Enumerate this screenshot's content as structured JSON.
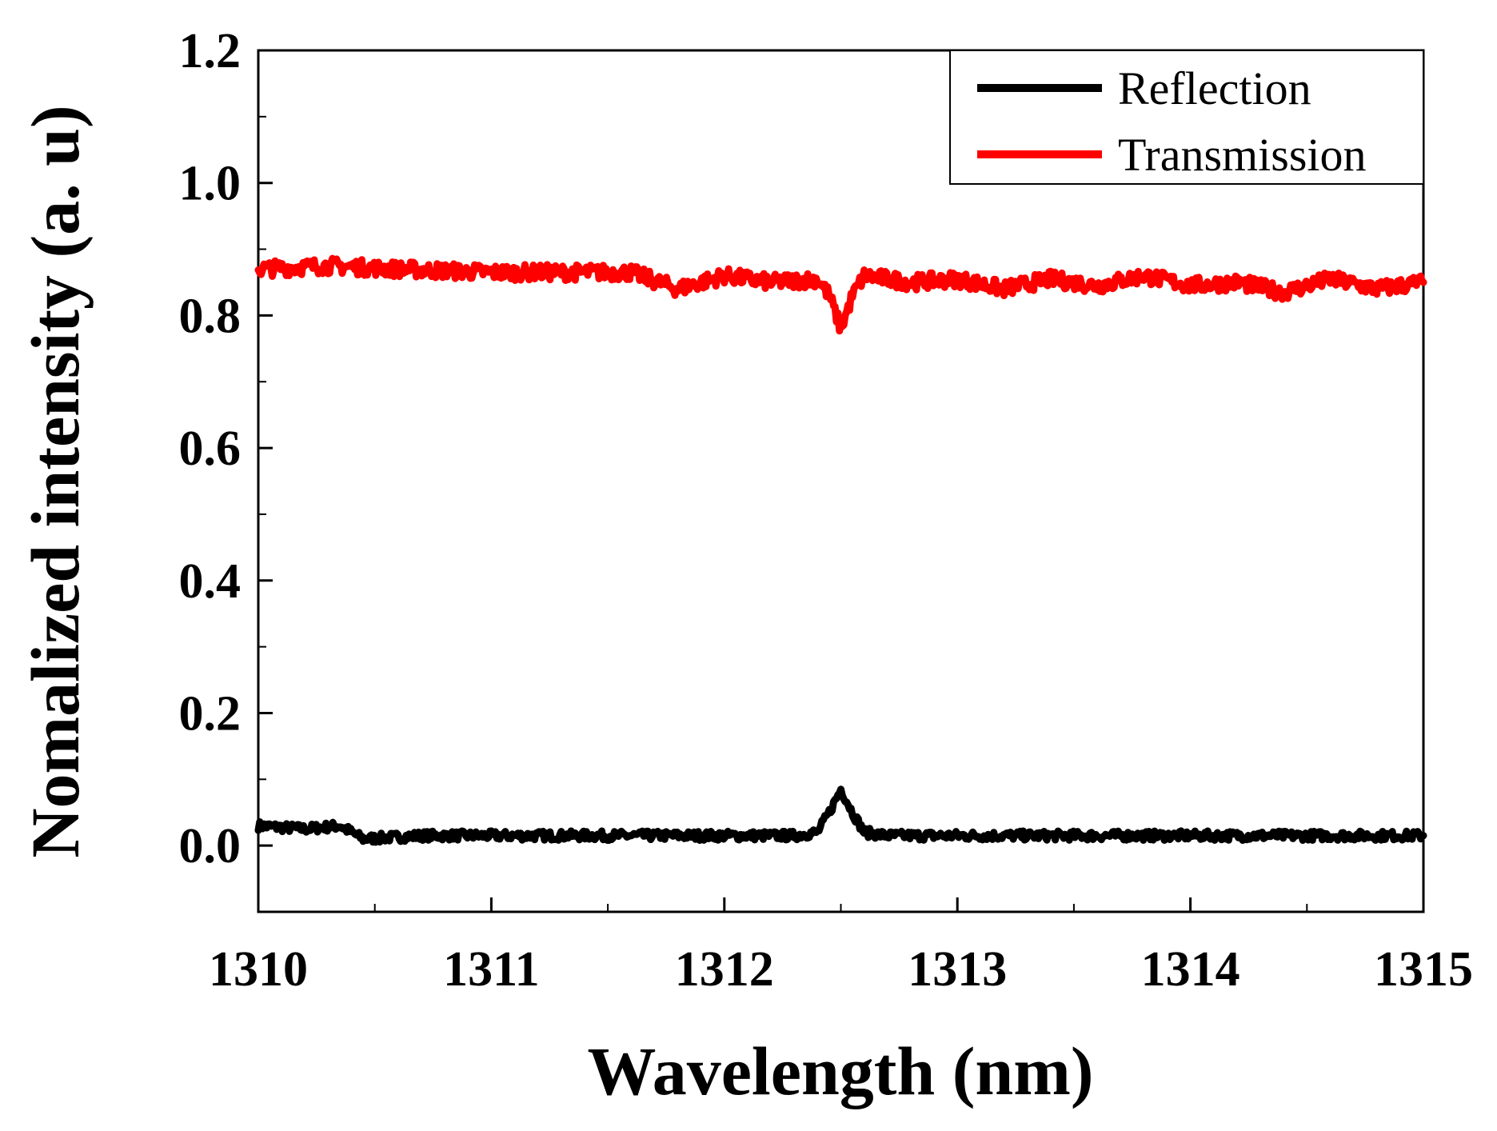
{
  "chart_data": {
    "type": "line",
    "title": "",
    "xlabel": "Wavelength (nm)",
    "ylabel": "Nomalized intensity (a. u)",
    "xlim": [
      1310,
      1315
    ],
    "ylim": [
      -0.1,
      1.2
    ],
    "xticks": [
      1310,
      1311,
      1312,
      1313,
      1314,
      1315
    ],
    "xtick_labels": [
      "1310",
      "1311",
      "1312",
      "1313",
      "1314",
      "1315"
    ],
    "yticks": [
      0.0,
      0.2,
      0.4,
      0.6,
      0.8,
      1.0,
      1.2
    ],
    "ytick_labels": [
      "0.0",
      "0.2",
      "0.4",
      "0.6",
      "0.8",
      "1.0",
      "1.2"
    ],
    "grid": false,
    "legend_position": "top-right",
    "series": [
      {
        "name": "Reflection",
        "color": "#000000",
        "x": [
          1310.0,
          1310.2,
          1310.35,
          1310.45,
          1310.7,
          1311.0,
          1311.3,
          1311.6,
          1311.9,
          1312.1,
          1312.3,
          1312.4,
          1312.45,
          1312.5,
          1312.55,
          1312.6,
          1312.7,
          1313.0,
          1313.3,
          1313.6,
          1313.9,
          1314.2,
          1314.5,
          1314.8,
          1315.0
        ],
        "values": [
          0.03,
          0.025,
          0.03,
          0.01,
          0.015,
          0.015,
          0.015,
          0.015,
          0.015,
          0.015,
          0.015,
          0.02,
          0.05,
          0.085,
          0.05,
          0.02,
          0.015,
          0.015,
          0.015,
          0.015,
          0.015,
          0.015,
          0.015,
          0.015,
          0.015
        ]
      },
      {
        "name": "Transmission",
        "color": "#ff0000",
        "x": [
          1310.0,
          1310.3,
          1310.6,
          1311.0,
          1311.3,
          1311.6,
          1311.8,
          1312.0,
          1312.2,
          1312.4,
          1312.45,
          1312.5,
          1312.55,
          1312.6,
          1312.8,
          1313.0,
          1313.2,
          1313.4,
          1313.6,
          1313.8,
          1314.0,
          1314.2,
          1314.4,
          1314.6,
          1314.8,
          1315.0
        ],
        "values": [
          0.87,
          0.875,
          0.87,
          0.865,
          0.865,
          0.865,
          0.84,
          0.86,
          0.85,
          0.855,
          0.83,
          0.78,
          0.83,
          0.86,
          0.85,
          0.855,
          0.84,
          0.855,
          0.845,
          0.86,
          0.845,
          0.85,
          0.835,
          0.855,
          0.84,
          0.85
        ]
      }
    ]
  }
}
